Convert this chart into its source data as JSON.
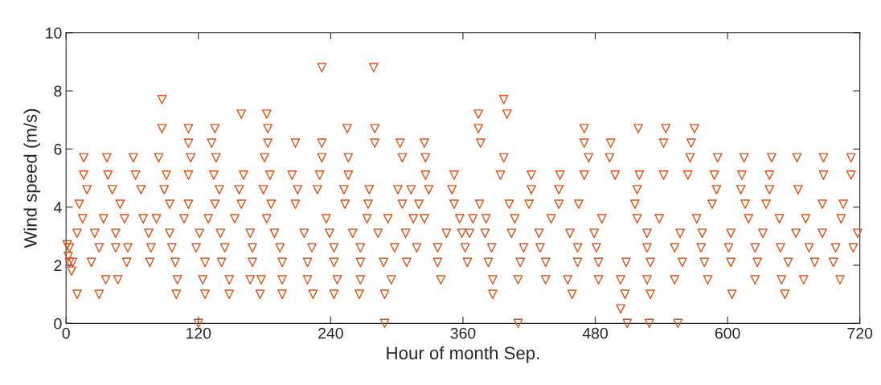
{
  "chart_data": {
    "type": "scatter",
    "xlabel": "Hour of month Sep.",
    "ylabel": "Wind speed (m/s)",
    "xlim": [
      0,
      720
    ],
    "xticks": [
      0,
      120,
      240,
      360,
      480,
      600,
      720
    ],
    "ylim": [
      0,
      10
    ],
    "yticks": [
      0,
      2,
      4,
      6,
      8,
      10
    ],
    "grid": false,
    "marker": "triangle",
    "series": [
      {
        "color": "#d95319",
        "x": [
          232,
          279,
          87,
          397,
          159,
          182,
          374,
          400,
          87,
          111,
          135,
          183,
          255,
          280,
          374,
          470,
          519,
          544,
          570,
          111,
          132,
          183,
          208,
          232,
          280,
          303,
          325,
          376,
          470,
          494,
          542,
          567,
          16,
          37,
          61,
          84,
          113,
          136,
          180,
          232,
          256,
          305,
          326,
          397,
          474,
          493,
          566,
          591,
          615,
          640,
          663,
          687,
          712,
          16,
          38,
          63,
          91,
          111,
          134,
          161,
          185,
          205,
          230,
          256,
          326,
          352,
          394,
          422,
          448,
          470,
          498,
          520,
          542,
          564,
          588,
          613,
          638,
          687,
          712,
          19,
          42,
          68,
          89,
          139,
          157,
          179,
          210,
          228,
          252,
          275,
          301,
          313,
          329,
          350,
          422,
          447,
          518,
          590,
          612,
          638,
          664,
          12,
          49,
          94,
          111,
          135,
          159,
          186,
          208,
          253,
          274,
          305,
          320,
          352,
          375,
          402,
          420,
          447,
          465,
          516,
          586,
          616,
          635,
          686,
          705,
          15,
          34,
          53,
          70,
          82,
          107,
          129,
          153,
          182,
          236,
          273,
          292,
          315,
          325,
          357,
          369,
          381,
          407,
          440,
          486,
          518,
          538,
          572,
          619,
          647,
          671,
          703,
          10,
          26,
          45,
          75,
          94,
          121,
          140,
          167,
          189,
          216,
          239,
          260,
          283,
          308,
          345,
          359,
          366,
          380,
          404,
          429,
          457,
          479,
          527,
          557,
          577,
          603,
          632,
          662,
          686,
          718,
          3,
          30,
          45,
          56,
          77,
          96,
          118,
          144,
          169,
          194,
          223,
          243,
          267,
          298,
          318,
          337,
          362,
          386,
          415,
          430,
          464,
          481,
          527,
          552,
          576,
          601,
          625,
          648,
          674,
          698,
          714,
          3,
          6,
          23,
          55,
          76,
          99,
          126,
          141,
          169,
          196,
          219,
          243,
          267,
          288,
          309,
          337,
          364,
          383,
          412,
          435,
          464,
          483,
          508,
          530,
          559,
          579,
          603,
          627,
          655,
          679,
          696,
          36,
          47,
          101,
          124,
          148,
          167,
          177,
          196,
          219,
          246,
          267,
          295,
          340,
          387,
          410,
          435,
          455,
          483,
          503,
          527,
          552,
          582,
          625,
          649,
          669,
          702,
          10,
          30,
          100,
          126,
          148,
          176,
          196,
          224,
          243,
          266,
          289,
          387,
          459,
          507,
          530,
          604,
          652,
          503,
          120,
          289,
          410,
          509,
          529,
          555,
          1,
          2,
          5
        ],
        "values": [
          8.8,
          8.8,
          7.7,
          7.7,
          7.2,
          7.2,
          7.2,
          7.2,
          6.7,
          6.7,
          6.7,
          6.7,
          6.7,
          6.7,
          6.7,
          6.7,
          6.7,
          6.7,
          6.7,
          6.2,
          6.2,
          6.2,
          6.2,
          6.2,
          6.2,
          6.2,
          6.2,
          6.2,
          6.2,
          6.2,
          6.2,
          6.2,
          5.7,
          5.7,
          5.7,
          5.7,
          5.7,
          5.7,
          5.7,
          5.7,
          5.7,
          5.7,
          5.7,
          5.7,
          5.7,
          5.7,
          5.7,
          5.7,
          5.7,
          5.7,
          5.7,
          5.7,
          5.7,
          5.1,
          5.1,
          5.1,
          5.1,
          5.1,
          5.1,
          5.1,
          5.1,
          5.1,
          5.1,
          5.1,
          5.1,
          5.1,
          5.1,
          5.1,
          5.1,
          5.1,
          5.1,
          5.1,
          5.1,
          5.1,
          5.1,
          5.1,
          5.1,
          5.1,
          5.1,
          4.6,
          4.6,
          4.6,
          4.6,
          4.6,
          4.6,
          4.6,
          4.6,
          4.6,
          4.6,
          4.6,
          4.6,
          4.6,
          4.6,
          4.6,
          4.6,
          4.6,
          4.6,
          4.6,
          4.6,
          4.6,
          4.6,
          4.1,
          4.1,
          4.1,
          4.1,
          4.1,
          4.1,
          4.1,
          4.1,
          4.1,
          4.1,
          4.1,
          4.1,
          4.1,
          4.1,
          4.1,
          4.1,
          4.1,
          4.1,
          4.1,
          4.1,
          4.1,
          4.1,
          4.1,
          4.1,
          3.6,
          3.6,
          3.6,
          3.6,
          3.6,
          3.6,
          3.6,
          3.6,
          3.6,
          3.6,
          3.6,
          3.6,
          3.6,
          3.6,
          3.6,
          3.6,
          3.6,
          3.6,
          3.6,
          3.6,
          3.6,
          3.6,
          3.6,
          3.6,
          3.6,
          3.6,
          3.6,
          3.1,
          3.1,
          3.1,
          3.1,
          3.1,
          3.1,
          3.1,
          3.1,
          3.1,
          3.1,
          3.1,
          3.1,
          3.1,
          3.1,
          3.1,
          3.1,
          3.1,
          3.1,
          3.1,
          3.1,
          3.1,
          3.1,
          3.1,
          3.1,
          3.1,
          3.1,
          3.1,
          3.1,
          3.1,
          3.1,
          2.6,
          2.6,
          2.6,
          2.6,
          2.6,
          2.6,
          2.6,
          2.6,
          2.6,
          2.6,
          2.6,
          2.6,
          2.6,
          2.6,
          2.6,
          2.6,
          2.6,
          2.6,
          2.6,
          2.6,
          2.6,
          2.6,
          2.6,
          2.6,
          2.6,
          2.6,
          2.6,
          2.6,
          2.6,
          2.6,
          2.6,
          2.1,
          2.1,
          2.1,
          2.1,
          2.1,
          2.1,
          2.1,
          2.1,
          2.1,
          2.1,
          2.1,
          2.1,
          2.1,
          2.1,
          2.1,
          2.1,
          2.1,
          2.1,
          2.1,
          2.1,
          2.1,
          2.1,
          2.1,
          2.1,
          2.1,
          2.1,
          2.1,
          2.1,
          2.1,
          2.1,
          2.1,
          1.5,
          1.5,
          1.5,
          1.5,
          1.5,
          1.5,
          1.5,
          1.5,
          1.5,
          1.5,
          1.5,
          1.5,
          1.5,
          1.5,
          1.5,
          1.5,
          1.5,
          1.5,
          1.5,
          1.5,
          1.5,
          1.5,
          1.5,
          1.5,
          1.5,
          1.5,
          1.0,
          1.0,
          1.0,
          1.0,
          1.0,
          1.0,
          1.0,
          1.0,
          1.0,
          1.0,
          1.0,
          1.0,
          1.0,
          1.0,
          1.0,
          1.0,
          1.0,
          0.5,
          0,
          0,
          0,
          0,
          0,
          0,
          2.7,
          2.3,
          1.8
        ]
      }
    ]
  }
}
